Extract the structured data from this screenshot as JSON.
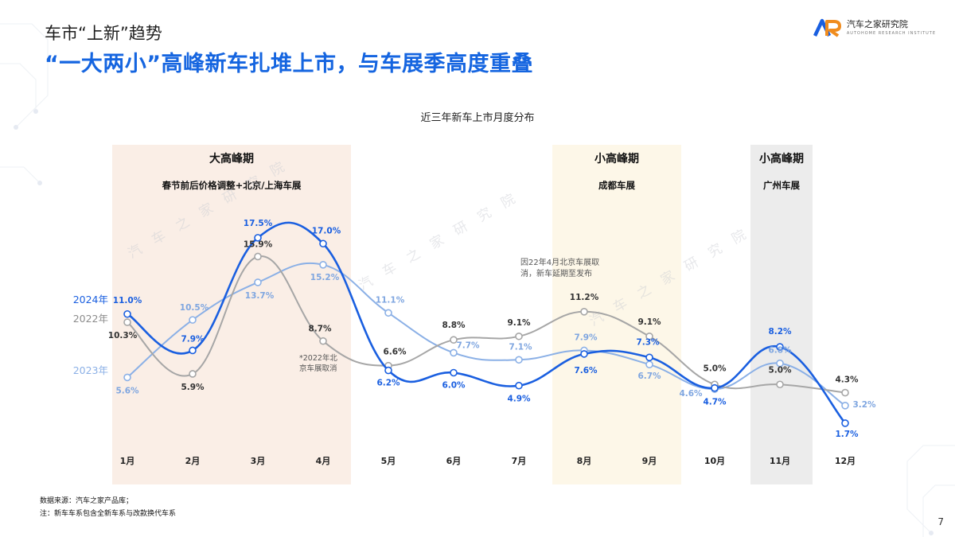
{
  "header": {
    "section": "车市“上新”趋势",
    "headline": "“一大两小”高峰新车扎堆上市，与车展季高度重叠",
    "logo_text": "汽车之家研究院",
    "logo_sub": "AUTOHOME RESEARCH INSTITUTE"
  },
  "chart_data": {
    "type": "line",
    "title": "近三年新车上市月度分布",
    "categories": [
      "1月",
      "2月",
      "3月",
      "4月",
      "5月",
      "6月",
      "7月",
      "8月",
      "9月",
      "10月",
      "11月",
      "12月"
    ],
    "ylim": [
      0,
      20
    ],
    "series": [
      {
        "name": "2024年",
        "color": "#1a5fe0",
        "values": [
          11.0,
          7.9,
          17.5,
          17.0,
          6.2,
          6.0,
          4.9,
          7.6,
          7.3,
          4.7,
          8.2,
          1.7
        ]
      },
      {
        "name": "2022年",
        "color": "#a6a6a6",
        "values": [
          10.3,
          5.9,
          15.9,
          8.7,
          6.6,
          8.8,
          9.1,
          11.2,
          9.1,
          5.0,
          5.0,
          4.3
        ]
      },
      {
        "name": "2023年",
        "color": "#8bb0e6",
        "values": [
          5.6,
          10.5,
          13.7,
          15.2,
          11.1,
          7.7,
          7.1,
          7.9,
          6.7,
          4.6,
          6.8,
          3.2
        ]
      }
    ],
    "value_labels": {
      "2024年": [
        "11.0%",
        "7.9%",
        "17.5%",
        "17.0%",
        "6.2%",
        "6.0%",
        "4.9%",
        "7.6%",
        "7.3%",
        "4.7%",
        "8.2%",
        "1.7%"
      ],
      "2022年": [
        "10.3%",
        "5.9%",
        "15.9%",
        "8.7%",
        "6.6%",
        "8.8%",
        "9.1%",
        "11.2%",
        "9.1%",
        "5.0%",
        "5.0%",
        "4.3%"
      ],
      "2023年": [
        "5.6%",
        "10.5%",
        "13.7%",
        "15.2%",
        "11.1%",
        "7.7%",
        "7.1%",
        "7.9%",
        "6.7%",
        "4.6%",
        "6.8%",
        "3.2%"
      ]
    },
    "bands": [
      {
        "title": "大高峰期",
        "subtitle": "春节前后价格调整+北京/上海车展",
        "color": "#faeee6"
      },
      {
        "title": "小高峰期",
        "subtitle": "成都车展",
        "color": "#fdf7e8"
      },
      {
        "title": "小高峰期",
        "subtitle": "广州车展",
        "color": "#ececec"
      }
    ],
    "annotations": [
      {
        "text_lines": [
          "*2022年北",
          "京车展取消"
        ]
      },
      {
        "text_lines": [
          "因22年4月北京车展取",
          "消，新车延期至发布"
        ]
      }
    ],
    "grid": false
  },
  "watermark": "汽车之家研究院",
  "footnotes": [
    "数据来源：汽车之家产品库；",
    "注：新车车系包含全新车系与改款换代车系"
  ],
  "page_number": "7"
}
